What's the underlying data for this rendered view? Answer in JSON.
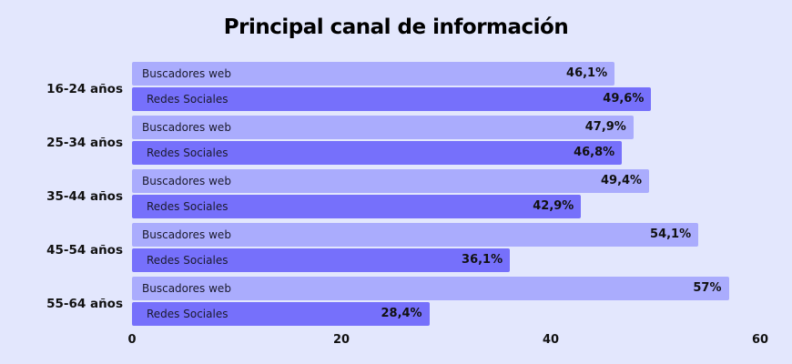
{
  "title": "Principal canal de información",
  "colors": {
    "background": "#e3e7fd",
    "buscadores_web": "#aaacfd",
    "redes_sociales": "#7670fb"
  },
  "groups": [
    {
      "label": "16-24 años",
      "bars": [
        {
          "name": "Buscadores web",
          "value": 46.1,
          "display": "46,1%"
        },
        {
          "name": "Redes Sociales",
          "value": 49.6,
          "display": "49,6%"
        }
      ]
    },
    {
      "label": "25-34 años",
      "bars": [
        {
          "name": "Buscadores web",
          "value": 47.9,
          "display": "47,9%"
        },
        {
          "name": "Redes Sociales",
          "value": 46.8,
          "display": "46,8%"
        }
      ]
    },
    {
      "label": "35-44 años",
      "bars": [
        {
          "name": "Buscadores web",
          "value": 49.4,
          "display": "49,4%"
        },
        {
          "name": "Redes Sociales",
          "value": 42.9,
          "display": "42,9%"
        }
      ]
    },
    {
      "label": "45-54 años",
      "bars": [
        {
          "name": "Buscadores web",
          "value": 54.1,
          "display": "54,1%"
        },
        {
          "name": "Redes Sociales",
          "value": 36.1,
          "display": "36,1%"
        }
      ]
    },
    {
      "label": "55-64 años",
      "bars": [
        {
          "name": "Buscadores web",
          "value": 57,
          "display": "57%"
        },
        {
          "name": "Redes Sociales",
          "value": 28.4,
          "display": "28,4%"
        }
      ]
    }
  ],
  "axis": {
    "ticks": [
      "0",
      "20",
      "40",
      "60"
    ]
  },
  "chart_data": {
    "type": "bar",
    "orientation": "horizontal",
    "title": "Principal canal de información",
    "categories": [
      "16-24 años",
      "25-34 años",
      "35-44 años",
      "45-54 años",
      "55-64 años"
    ],
    "series": [
      {
        "name": "Buscadores web",
        "values": [
          46.1,
          47.9,
          49.4,
          54.1,
          57
        ]
      },
      {
        "name": "Redes Sociales",
        "values": [
          49.6,
          46.8,
          42.9,
          36.1,
          28.4
        ]
      }
    ],
    "xlabel": "",
    "ylabel": "",
    "xlim": [
      0,
      60
    ],
    "xticks": [
      0,
      20,
      40,
      60
    ],
    "grid": false,
    "legend": "none (series names shown inside bars)",
    "value_unit": "%"
  }
}
